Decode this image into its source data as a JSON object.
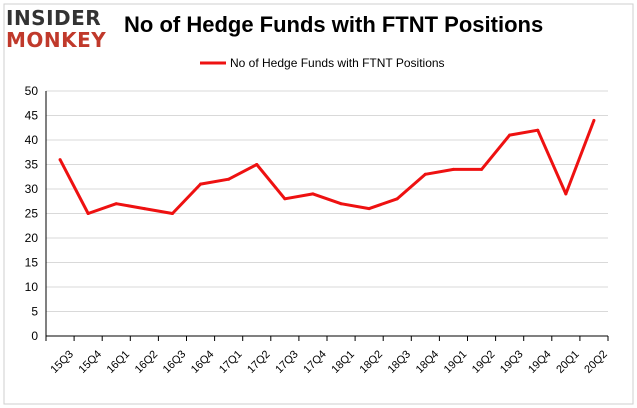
{
  "logo": {
    "line1": "INSIDER",
    "line2": "MONKEY"
  },
  "colors": {
    "series": "#ee1111",
    "grid": "#d9d9d9",
    "axis": "#000000",
    "logo_dark": "#333333",
    "logo_red": "#c0392b"
  },
  "chart_data": {
    "type": "line",
    "title": "No of Hedge Funds with FTNT Positions",
    "xlabel": "",
    "ylabel": "",
    "ylim": [
      0,
      50
    ],
    "yticks": [
      0,
      5,
      10,
      15,
      20,
      25,
      30,
      35,
      40,
      45,
      50
    ],
    "grid": true,
    "legend_position": "top-center",
    "categories": [
      "15Q3",
      "15Q4",
      "16Q1",
      "16Q2",
      "16Q3",
      "16Q4",
      "17Q1",
      "17Q2",
      "17Q3",
      "17Q4",
      "18Q1",
      "18Q2",
      "18Q3",
      "18Q4",
      "19Q1",
      "19Q2",
      "19Q3",
      "19Q4",
      "20Q1",
      "20Q2"
    ],
    "series": [
      {
        "name": "No of Hedge Funds with FTNT Positions",
        "values": [
          36,
          25,
          27,
          26,
          25,
          31,
          32,
          35,
          28,
          29,
          27,
          26,
          28,
          33,
          34,
          34,
          41,
          42,
          29,
          44
        ]
      }
    ]
  }
}
